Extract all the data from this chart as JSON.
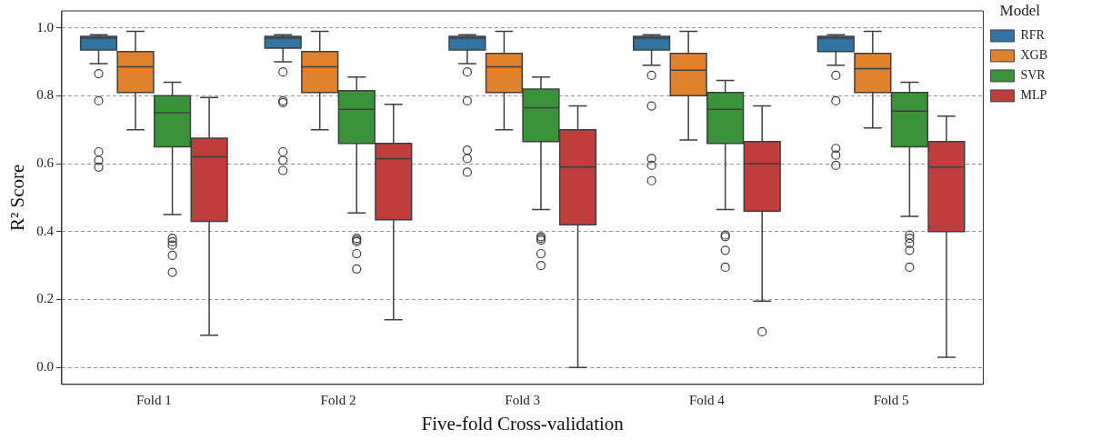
{
  "chart_data": {
    "type": "box",
    "xlabel": "Five-fold Cross-validation",
    "ylabel": "R² Score",
    "legend_title": "Model",
    "legend": "top right",
    "grid": "y",
    "line_style": "dashed",
    "marker": "circle",
    "categories": [
      "Fold 1",
      "Fold 2",
      "Fold 3",
      "Fold 4",
      "Fold 5"
    ],
    "ylim": [
      -0.05,
      1.05
    ],
    "yticks": [
      {
        "value": 0,
        "label": "0.0"
      },
      {
        "value": 0.2,
        "label": "0.2"
      },
      {
        "value": 0.4,
        "label": "0.4"
      },
      {
        "value": 0.6,
        "label": "0.6"
      },
      {
        "value": 0.8,
        "label": "0.8"
      },
      {
        "value": 1,
        "label": "1.0"
      }
    ],
    "series": [
      {
        "name": "RFR",
        "color": "#3274a1",
        "boxes": [
          {
            "low": 0.895,
            "q1": 0.935,
            "median": 0.97,
            "q3": 0.975,
            "high": 0.98,
            "outliers": [
              0.865,
              0.785,
              0.635,
              0.61,
              0.59
            ]
          },
          {
            "low": 0.9,
            "q1": 0.94,
            "median": 0.97,
            "q3": 0.975,
            "high": 0.98,
            "outliers": [
              0.87,
              0.785,
              0.78,
              0.635,
              0.61,
              0.58
            ]
          },
          {
            "low": 0.895,
            "q1": 0.935,
            "median": 0.97,
            "q3": 0.975,
            "high": 0.98,
            "outliers": [
              0.87,
              0.785,
              0.64,
              0.615,
              0.575
            ]
          },
          {
            "low": 0.89,
            "q1": 0.935,
            "median": 0.97,
            "q3": 0.975,
            "high": 0.98,
            "outliers": [
              0.86,
              0.77,
              0.615,
              0.595,
              0.55
            ]
          },
          {
            "low": 0.89,
            "q1": 0.93,
            "median": 0.97,
            "q3": 0.975,
            "high": 0.98,
            "outliers": [
              0.86,
              0.785,
              0.645,
              0.625,
              0.595
            ]
          }
        ]
      },
      {
        "name": "XGB",
        "color": "#e1812c",
        "boxes": [
          {
            "low": 0.7,
            "q1": 0.81,
            "median": 0.885,
            "q3": 0.93,
            "high": 0.99
          },
          {
            "low": 0.7,
            "q1": 0.81,
            "median": 0.885,
            "q3": 0.93,
            "high": 0.99
          },
          {
            "low": 0.7,
            "q1": 0.81,
            "median": 0.885,
            "q3": 0.925,
            "high": 0.99
          },
          {
            "low": 0.67,
            "q1": 0.8,
            "median": 0.875,
            "q3": 0.925,
            "high": 0.99
          },
          {
            "low": 0.705,
            "q1": 0.81,
            "median": 0.88,
            "q3": 0.925,
            "high": 0.99
          }
        ]
      },
      {
        "name": "SVR",
        "color": "#3a923a",
        "boxes": [
          {
            "low": 0.45,
            "q1": 0.65,
            "median": 0.75,
            "q3": 0.8,
            "high": 0.84,
            "outliers": [
              0.38,
              0.37,
              0.36,
              0.33,
              0.28
            ]
          },
          {
            "low": 0.455,
            "q1": 0.66,
            "median": 0.76,
            "q3": 0.815,
            "high": 0.855,
            "outliers": [
              0.38,
              0.375,
              0.37,
              0.335,
              0.29
            ]
          },
          {
            "low": 0.465,
            "q1": 0.665,
            "median": 0.765,
            "q3": 0.82,
            "high": 0.855,
            "outliers": [
              0.385,
              0.38,
              0.375,
              0.335,
              0.3
            ]
          },
          {
            "low": 0.465,
            "q1": 0.66,
            "median": 0.76,
            "q3": 0.81,
            "high": 0.845,
            "outliers": [
              0.39,
              0.385,
              0.345,
              0.295
            ]
          },
          {
            "low": 0.445,
            "q1": 0.65,
            "median": 0.755,
            "q3": 0.81,
            "high": 0.84,
            "outliers": [
              0.39,
              0.38,
              0.365,
              0.345,
              0.295
            ]
          }
        ]
      },
      {
        "name": "MLP",
        "color": "#c03d3e",
        "boxes": [
          {
            "low": 0.095,
            "q1": 0.43,
            "median": 0.62,
            "q3": 0.675,
            "high": 0.795
          },
          {
            "low": 0.14,
            "q1": 0.435,
            "median": 0.615,
            "q3": 0.66,
            "high": 0.775
          },
          {
            "low": 0.0,
            "q1": 0.42,
            "median": 0.59,
            "q3": 0.7,
            "high": 0.77
          },
          {
            "low": 0.195,
            "q1": 0.46,
            "median": 0.6,
            "q3": 0.665,
            "high": 0.77,
            "outliers": [
              0.105
            ]
          },
          {
            "low": 0.03,
            "q1": 0.4,
            "median": 0.59,
            "q3": 0.665,
            "high": 0.74
          }
        ]
      }
    ]
  }
}
